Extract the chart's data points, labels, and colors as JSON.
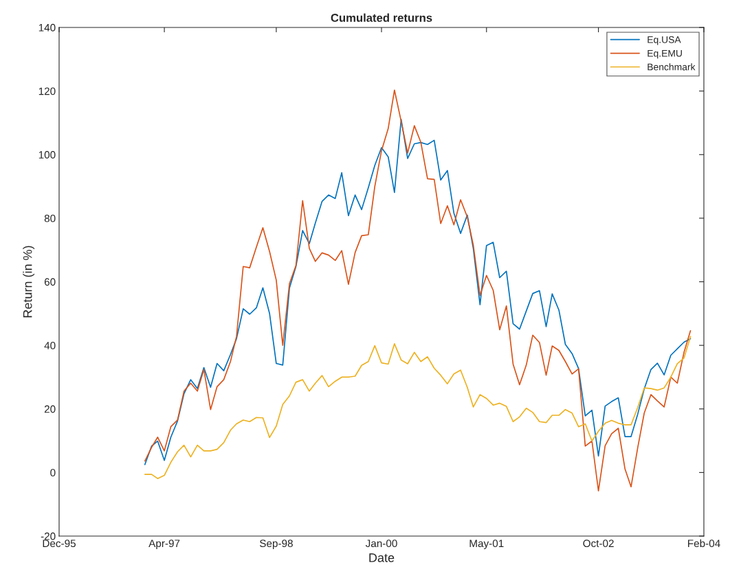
{
  "chart_data": {
    "type": "line",
    "title": "Cumulated returns",
    "xlabel": "Date",
    "ylabel": "Return (in %)",
    "x": [
      "1997-01",
      "1997-02",
      "1997-03",
      "1997-04",
      "1997-05",
      "1997-06",
      "1997-07",
      "1997-08",
      "1997-09",
      "1997-10",
      "1997-11",
      "1997-12",
      "1998-01",
      "1998-02",
      "1998-03",
      "1998-04",
      "1998-05",
      "1998-06",
      "1998-07",
      "1998-08",
      "1998-09",
      "1998-10",
      "1998-11",
      "1998-12",
      "1999-01",
      "1999-02",
      "1999-03",
      "1999-04",
      "1999-05",
      "1999-06",
      "1999-07",
      "1999-08",
      "1999-09",
      "1999-10",
      "1999-11",
      "1999-12",
      "2000-01",
      "2000-02",
      "2000-03",
      "2000-04",
      "2000-05",
      "2000-06",
      "2000-07",
      "2000-08",
      "2000-09",
      "2000-10",
      "2000-11",
      "2000-12",
      "2001-01",
      "2001-02",
      "2001-03",
      "2001-04",
      "2001-05",
      "2001-06",
      "2001-07",
      "2001-08",
      "2001-09",
      "2001-10",
      "2001-11",
      "2001-12",
      "2002-01",
      "2002-02",
      "2002-03",
      "2002-04",
      "2002-05",
      "2002-06",
      "2002-07",
      "2002-08",
      "2002-09",
      "2002-10",
      "2002-11",
      "2002-12",
      "2003-01",
      "2003-02",
      "2003-03",
      "2003-04",
      "2003-05",
      "2003-06",
      "2003-07",
      "2003-08",
      "2003-09",
      "2003-10",
      "2003-11",
      "2003-12"
    ],
    "series": [
      {
        "name": "Eq.USA",
        "color": "#0072bd",
        "values": [
          2.5,
          8.3,
          9.9,
          3.8,
          11.1,
          16.2,
          24.8,
          29.2,
          26.4,
          33.0,
          26.8,
          34.3,
          32.0,
          37.1,
          42.1,
          51.5,
          49.8,
          51.8,
          58.1,
          50.0,
          34.3,
          33.8,
          58.0,
          64.8,
          76.1,
          72.0,
          78.5,
          85.3,
          87.3,
          86.2,
          94.3,
          80.8,
          87.3,
          82.7,
          89.6,
          96.6,
          102.2,
          99.3,
          88.1,
          111.1,
          98.8,
          103.4,
          103.8,
          103.2,
          104.5,
          92.0,
          95.0,
          81.6,
          75.2,
          81.0,
          70.4,
          52.8,
          71.4,
          72.4,
          61.3,
          63.3,
          46.8,
          45.1,
          50.8,
          56.3,
          57.2,
          45.9,
          56.2,
          51.1,
          40.3,
          37.4,
          32.7,
          17.8,
          19.6,
          5.2,
          20.9,
          22.3,
          23.5,
          11.3,
          11.3,
          18.4,
          26.3,
          32.4,
          34.4,
          30.7,
          36.9,
          38.9,
          41.0,
          42.1
        ]
      },
      {
        "name": "Eq.EMU",
        "color": "#d95319",
        "values": [
          3.6,
          7.9,
          11.1,
          6.8,
          14.4,
          16.5,
          25.6,
          28.1,
          25.6,
          32.4,
          19.8,
          27.0,
          29.2,
          34.9,
          42.8,
          64.8,
          64.4,
          70.9,
          77.0,
          69.5,
          60.5,
          40.0,
          59.4,
          65.1,
          85.5,
          70.5,
          66.4,
          69.1,
          68.4,
          66.7,
          69.8,
          59.2,
          69.2,
          74.5,
          74.8,
          90.0,
          101.2,
          108.2,
          120.3,
          110.5,
          100.5,
          109.1,
          103.9,
          92.4,
          92.2,
          78.3,
          83.9,
          77.9,
          85.8,
          80.4,
          71.5,
          55.7,
          62.0,
          57.3,
          44.9,
          52.4,
          34.1,
          27.6,
          33.8,
          43.2,
          40.9,
          30.6,
          39.8,
          38.4,
          34.9,
          31.0,
          32.6,
          8.3,
          9.9,
          -5.8,
          8.4,
          12.2,
          13.9,
          1.1,
          -4.5,
          7.9,
          18.7,
          24.5,
          22.5,
          20.6,
          30.0,
          28.1,
          37.8,
          44.6
        ]
      },
      {
        "name": "Benchmark",
        "color": "#edb120",
        "values": [
          -0.6,
          -0.6,
          -1.9,
          -0.9,
          3.2,
          6.5,
          8.6,
          4.9,
          8.6,
          6.8,
          6.8,
          7.3,
          9.4,
          13.3,
          15.3,
          16.5,
          16.0,
          17.3,
          17.2,
          11.0,
          14.6,
          21.4,
          24.1,
          28.4,
          29.2,
          25.6,
          28.1,
          30.5,
          27.0,
          28.7,
          30.0,
          30.0,
          30.3,
          33.7,
          34.9,
          39.9,
          34.5,
          34.1,
          40.5,
          35.4,
          34.2,
          37.8,
          34.9,
          36.4,
          32.8,
          30.6,
          27.9,
          31.0,
          32.2,
          26.8,
          20.6,
          24.5,
          23.3,
          21.2,
          21.8,
          20.8,
          16.0,
          17.5,
          20.2,
          18.9,
          16.0,
          15.7,
          18.0,
          18.0,
          19.8,
          18.7,
          14.4,
          15.3,
          9.9,
          13.0,
          15.5,
          16.4,
          15.5,
          15.0,
          15.0,
          20.5,
          26.6,
          26.4,
          25.9,
          26.6,
          30.0,
          34.2,
          36.0,
          42.8
        ]
      }
    ],
    "xlim": [
      "1995-12",
      "2004-02"
    ],
    "xticks": [
      {
        "value": "1995-12",
        "label": "Dec-95"
      },
      {
        "value": "1997-04",
        "label": "Apr-97"
      },
      {
        "value": "1998-09",
        "label": "Sep-98"
      },
      {
        "value": "2000-01",
        "label": "Jan-00"
      },
      {
        "value": "2001-05",
        "label": "May-01"
      },
      {
        "value": "2002-10",
        "label": "Oct-02"
      },
      {
        "value": "2004-02",
        "label": "Feb-04"
      }
    ],
    "ylim": [
      -20,
      140
    ],
    "yticks": [
      -20,
      0,
      20,
      40,
      60,
      80,
      100,
      120,
      140
    ],
    "legend": "top right",
    "marker": "none",
    "line_style": "solid"
  }
}
